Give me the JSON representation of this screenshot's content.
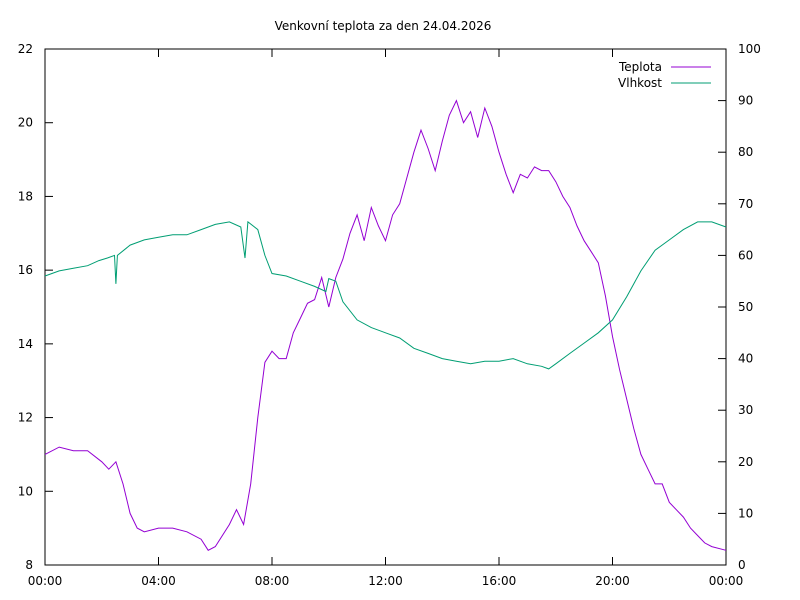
{
  "chart_data": {
    "type": "line",
    "title": "Venkovní teplota za den 24.04.2026",
    "xlabel": "",
    "ylabel": "",
    "y2label": "",
    "x_ticks": [
      "00:00",
      "04:00",
      "08:00",
      "12:00",
      "16:00",
      "20:00",
      "00:00"
    ],
    "xlim_hours": [
      0,
      24
    ],
    "ylim": [
      8,
      22
    ],
    "y_ticks": [
      8,
      10,
      12,
      14,
      16,
      18,
      20,
      22
    ],
    "y2lim": [
      0,
      100
    ],
    "y2_ticks": [
      0,
      10,
      20,
      30,
      40,
      50,
      60,
      70,
      80,
      90,
      100
    ],
    "grid": false,
    "legend_position": "top-right",
    "series": [
      {
        "name": "Teplota",
        "axis": "left",
        "color": "#9400d3",
        "x_hours": [
          0,
          0.5,
          1,
          1.5,
          2,
          2.25,
          2.5,
          2.75,
          3,
          3.25,
          3.5,
          4,
          4.5,
          5,
          5.5,
          5.75,
          6,
          6.5,
          6.75,
          7,
          7.25,
          7.5,
          7.75,
          8,
          8.25,
          8.5,
          8.75,
          9,
          9.25,
          9.5,
          9.75,
          10,
          10.25,
          10.5,
          10.75,
          11,
          11.25,
          11.5,
          11.75,
          12,
          12.25,
          12.5,
          12.75,
          13,
          13.25,
          13.5,
          13.75,
          14,
          14.25,
          14.5,
          14.75,
          15,
          15.25,
          15.5,
          15.75,
          16,
          16.25,
          16.5,
          16.75,
          17,
          17.25,
          17.5,
          17.75,
          18,
          18.25,
          18.5,
          18.75,
          19,
          19.25,
          19.5,
          19.75,
          20,
          20.25,
          20.5,
          20.75,
          21,
          21.25,
          21.5,
          21.75,
          22,
          22.25,
          22.5,
          22.75,
          23,
          23.25,
          23.5,
          24
        ],
        "values": [
          11.0,
          11.2,
          11.1,
          11.1,
          10.8,
          10.6,
          10.8,
          10.2,
          9.4,
          9.0,
          8.9,
          9.0,
          9.0,
          8.9,
          8.7,
          8.4,
          8.5,
          9.1,
          9.5,
          9.1,
          10.2,
          12.0,
          13.5,
          13.8,
          13.6,
          13.6,
          14.3,
          14.7,
          15.1,
          15.2,
          15.8,
          15.0,
          15.8,
          16.3,
          17.0,
          17.5,
          16.8,
          17.7,
          17.2,
          16.8,
          17.5,
          17.8,
          18.5,
          19.2,
          19.8,
          19.3,
          18.7,
          19.5,
          20.2,
          20.6,
          20.0,
          20.3,
          19.6,
          20.4,
          19.9,
          19.2,
          18.6,
          18.1,
          18.6,
          18.5,
          18.8,
          18.7,
          18.7,
          18.4,
          18.0,
          17.7,
          17.2,
          16.8,
          16.5,
          16.2,
          15.3,
          14.2,
          13.3,
          12.5,
          11.7,
          11.0,
          10.6,
          10.2,
          10.2,
          9.7,
          9.5,
          9.3,
          9.0,
          8.8,
          8.6,
          8.5,
          8.4
        ]
      },
      {
        "name": "Vlhkost",
        "axis": "right",
        "color": "#009e73",
        "x_hours": [
          0,
          0.5,
          1,
          1.5,
          1.9,
          2.2,
          2.45,
          2.5,
          2.55,
          3,
          3.5,
          4,
          4.5,
          5,
          5.5,
          6,
          6.5,
          6.9,
          7.05,
          7.15,
          7.5,
          7.75,
          8,
          8.5,
          9,
          9.5,
          9.9,
          10,
          10.25,
          10.5,
          11,
          11.5,
          12,
          12.5,
          13,
          13.5,
          14,
          14.5,
          15,
          15.5,
          16,
          16.5,
          17,
          17.5,
          17.75,
          18,
          18.5,
          19,
          19.5,
          20,
          20.5,
          21,
          21.5,
          22,
          22.5,
          23,
          23.5,
          24
        ],
        "values": [
          56,
          57,
          57.5,
          58,
          59,
          59.5,
          60,
          54.5,
          60,
          62,
          63,
          63.5,
          64,
          64,
          65,
          66,
          66.5,
          65.5,
          59.5,
          66.5,
          65,
          60,
          56.5,
          56,
          55,
          54,
          53,
          55.5,
          55,
          51,
          47.5,
          46,
          45,
          44,
          42,
          41,
          40,
          39.5,
          39,
          39.5,
          39.5,
          40,
          39,
          38.5,
          38,
          39,
          41,
          43,
          45,
          47.5,
          52,
          57,
          61,
          63,
          65,
          66.5,
          66.5,
          65.5
        ]
      }
    ]
  }
}
